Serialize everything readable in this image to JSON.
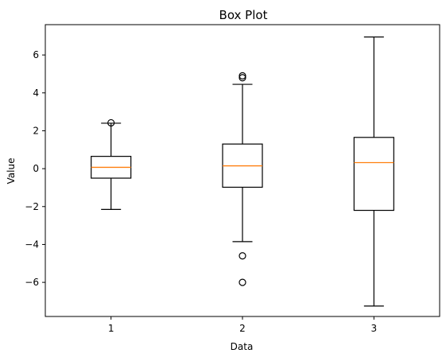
{
  "chart_data": {
    "type": "box",
    "title": "Box Plot",
    "xlabel": "Data",
    "ylabel": "Value",
    "categories": [
      "1",
      "2",
      "3"
    ],
    "ylim": [
      -7.8,
      7.6
    ],
    "yticks": [
      -6,
      -4,
      -2,
      0,
      2,
      4,
      6
    ],
    "grid": false,
    "colors": {
      "box": "#000000",
      "median": "#ff7f0e",
      "flier": "#000000"
    },
    "series": [
      {
        "category": "1",
        "whisker_low": -2.15,
        "q1": -0.5,
        "median": 0.07,
        "q3": 0.65,
        "whisker_high": 2.4,
        "fliers": [
          2.42
        ]
      },
      {
        "category": "2",
        "whisker_low": -3.85,
        "q1": -0.98,
        "median": 0.15,
        "q3": 1.3,
        "whisker_high": 4.45,
        "fliers": [
          4.8,
          4.9,
          -4.6,
          -6.0
        ]
      },
      {
        "category": "3",
        "whisker_low": -7.25,
        "q1": -2.2,
        "median": 0.32,
        "q3": 1.65,
        "whisker_high": 6.95,
        "fliers": []
      }
    ]
  }
}
